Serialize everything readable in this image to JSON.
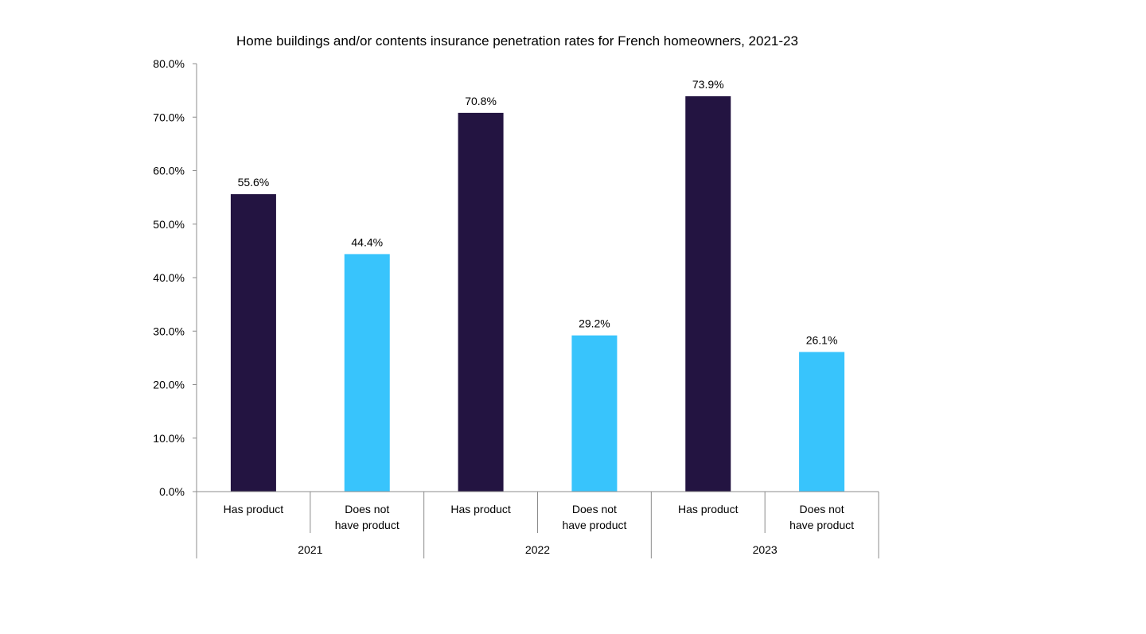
{
  "chart_data": {
    "type": "bar",
    "title": "Home buildings and/or contents insurance penetration rates for French homeowners, 2021-23",
    "xlabel": "",
    "ylabel": "",
    "ylim": [
      0,
      80
    ],
    "y_ticks": [
      "0.0%",
      "10.0%",
      "20.0%",
      "30.0%",
      "40.0%",
      "50.0%",
      "60.0%",
      "70.0%",
      "80.0%"
    ],
    "grid": false,
    "legend": "none",
    "groups": [
      {
        "label": "2021",
        "bars": [
          {
            "category": "Has product",
            "value": 55.6,
            "label": "55.6%",
            "color": "#231441"
          },
          {
            "category": "Does not have product",
            "value": 44.4,
            "label": "44.4%",
            "color": "#38c4fc"
          }
        ]
      },
      {
        "label": "2022",
        "bars": [
          {
            "category": "Has product",
            "value": 70.8,
            "label": "70.8%",
            "color": "#231441"
          },
          {
            "category": "Does not have product",
            "value": 29.2,
            "label": "29.2%",
            "color": "#38c4fc"
          }
        ]
      },
      {
        "label": "2023",
        "bars": [
          {
            "category": "Has product",
            "value": 73.9,
            "label": "73.9%",
            "color": "#231441"
          },
          {
            "category": "Does not have product",
            "value": 26.1,
            "label": "26.1%",
            "color": "#38c4fc"
          }
        ]
      }
    ]
  }
}
